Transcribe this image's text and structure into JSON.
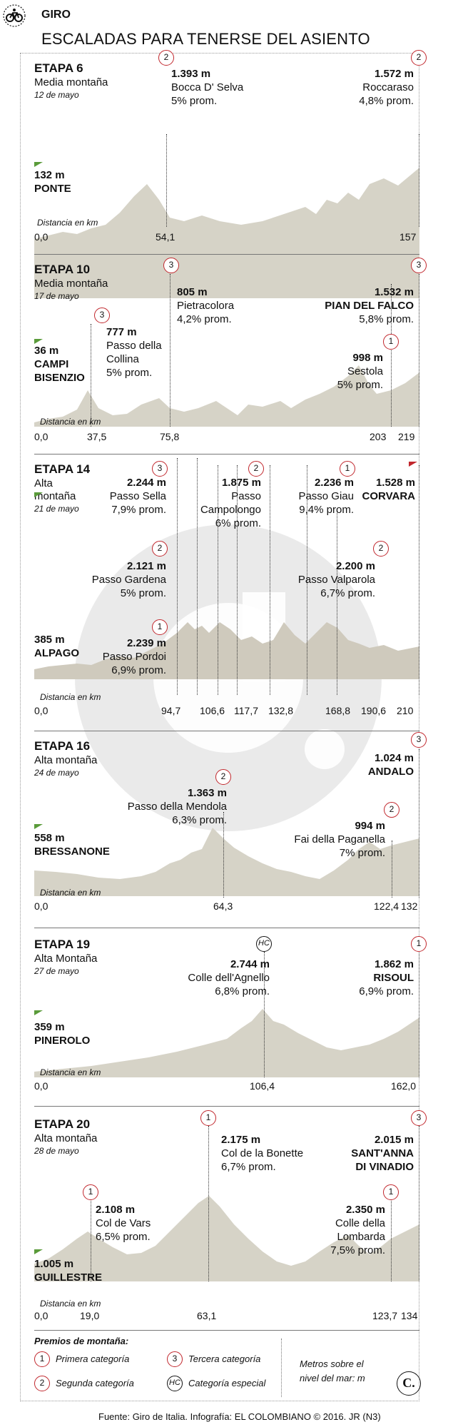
{
  "header": {
    "section": "GIRO",
    "title": "ESCALADAS PARA TENERSE DEL ASIENTO",
    "icon": "bicycle-icon"
  },
  "common": {
    "dist_label": "Distancia en km"
  },
  "stages": [
    {
      "title": "ETAPA 6",
      "sub": "Media montaña",
      "date": "12 de mayo",
      "start": {
        "alt": "132 m",
        "name": "PONTE"
      },
      "climbs": [
        {
          "alt": "1.393 m",
          "name": "Bocca D' Selva",
          "grade": "5% prom.",
          "cat": "2"
        },
        {
          "alt": "1.572 m",
          "name": "Roccaraso",
          "grade": "4,8% prom.",
          "cat": "2"
        }
      ],
      "ticks": [
        "0,0",
        "54,1",
        "157"
      ]
    },
    {
      "title": "ETAPA 10",
      "sub": "Media montaña",
      "date": "17 de mayo",
      "start": {
        "alt": "36 m",
        "name": "CAMPI",
        "name2": "BISENZIO"
      },
      "climbs": [
        {
          "alt": "777 m",
          "name": "Passo della",
          "name2": "Collina",
          "grade": "5% prom.",
          "cat": "3"
        },
        {
          "alt": "805 m",
          "name": "Pietracolora",
          "grade": "4,2% prom.",
          "cat": "3"
        },
        {
          "alt": "1.532 m",
          "name": "PIAN DEL FALCO",
          "grade": "5,8% prom.",
          "cat": "3"
        },
        {
          "alt": "998 m",
          "name": "Sestola",
          "grade": "5% prom.",
          "cat": "1"
        }
      ],
      "ticks": [
        "0,0",
        "37,5",
        "75,8",
        "203",
        "219"
      ]
    },
    {
      "title": "ETAPA 14",
      "sub": "Alta",
      "sub2": "montaña",
      "date": "21 de mayo",
      "start": {
        "alt": "385 m",
        "name": "ALPAGO"
      },
      "climbs": [
        {
          "alt": "2.244 m",
          "name": "Passo Sella",
          "grade": "7,9% prom.",
          "cat": "3"
        },
        {
          "alt": "1.875 m",
          "name": "Passo",
          "name2": "Campolongo",
          "grade": "6% prom.",
          "cat": "2"
        },
        {
          "alt": "2.236 m",
          "name": "Passo Giau",
          "grade": "9,4% prom.",
          "cat": "1"
        },
        {
          "alt": "1.528 m",
          "name": "CORVARA"
        },
        {
          "alt": "2.121 m",
          "name": "Passo Gardena",
          "grade": "5% prom.",
          "cat": "2"
        },
        {
          "alt": "2.200 m",
          "name": "Passo Valparola",
          "grade": "6,7% prom.",
          "cat": "2"
        },
        {
          "alt": "2.239 m",
          "name": "Passo Pordoi",
          "grade": "6,9% prom.",
          "cat": "1"
        }
      ],
      "ticks": [
        "0,0",
        "94,7",
        "106,6",
        "117,7",
        "132,8",
        "168,8",
        "190,6",
        "210"
      ]
    },
    {
      "title": "ETAPA 16",
      "sub": "Alta montaña",
      "date": "24 de mayo",
      "start": {
        "alt": "558 m",
        "name": "BRESSANONE"
      },
      "climbs": [
        {
          "alt": "1.363 m",
          "name": "Passo della Mendola",
          "grade": "6,3% prom.",
          "cat": "2"
        },
        {
          "alt": "1.024 m",
          "name": "ANDALO",
          "cat": "3"
        },
        {
          "alt": "994 m",
          "name": "Fai della Paganella",
          "grade": "7% prom.",
          "cat": "2"
        }
      ],
      "ticks": [
        "0,0",
        "64,3",
        "122,4",
        "132"
      ]
    },
    {
      "title": "ETAPA 19",
      "sub": "Alta Montaña",
      "date": "27 de mayo",
      "start": {
        "alt": "359 m",
        "name": "PINEROLO"
      },
      "climbs": [
        {
          "alt": "2.744 m",
          "name": "Colle dell'Agnello",
          "grade": "6,8% prom.",
          "cat": "HC"
        },
        {
          "alt": "1.862 m",
          "name": "RISOUL",
          "grade": "6,9% prom.",
          "cat": "1"
        }
      ],
      "ticks": [
        "0,0",
        "106,4",
        "162,0"
      ]
    },
    {
      "title": "ETAPA 20",
      "sub": "Alta montaña",
      "date": "28 de mayo",
      "start": {
        "alt": "1.005 m",
        "name": "GUILLESTRE"
      },
      "climbs": [
        {
          "alt": "2.108 m",
          "name": "Col de Vars",
          "grade": "6,5% prom.",
          "cat": "1"
        },
        {
          "alt": "2.175 m",
          "name": "Col de la Bonette",
          "grade": "6,7% prom.",
          "cat": "1"
        },
        {
          "alt": "2.015 m",
          "name": "SANT'ANNA",
          "name2": "DI VINADIO",
          "cat": "3"
        },
        {
          "alt": "2.350 m",
          "name": "Colle della",
          "name2": "Lombarda",
          "grade": "7,5% prom.",
          "cat": "1"
        }
      ],
      "ticks": [
        "0,0",
        "19,0",
        "63,1",
        "123,7",
        "134"
      ]
    }
  ],
  "legend": {
    "title": "Premios de montaña:",
    "items": [
      {
        "badge": "1",
        "label": "Primera categoría"
      },
      {
        "badge": "3",
        "label": "Tercera categoría"
      },
      {
        "badge": "2",
        "label": "Segunda categoría"
      },
      {
        "badge": "HC",
        "label": "Categoría especial"
      }
    ],
    "note": "Metros sobre el",
    "note2": "nivel del mar: m",
    "logo": "C."
  },
  "footer": "Fuente: Giro de Italia. Infografía: EL COLOMBIANO © 2016. JR (N3)",
  "colors": {
    "profile": "#d6d3c7",
    "badge": "#c1272d",
    "flag": "#5a9b3a"
  }
}
